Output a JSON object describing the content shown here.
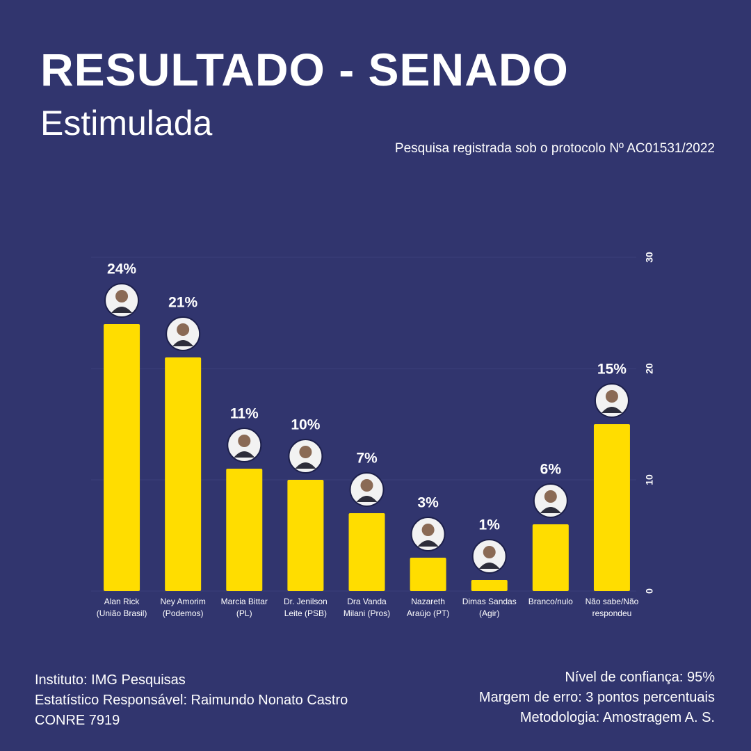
{
  "chart_data": {
    "type": "bar",
    "title": "RESULTADO - SENADO",
    "subtitle": "Estimulada",
    "note": "Pesquisa registrada sob o protocolo  Nº AC01531/2022",
    "categories": [
      "Alan Rick (União Brasil)",
      "Ney Amorim (Podemos)",
      "Marcia Bittar (PL)",
      "Dr. Jenilson Leite (PSB)",
      "Dra Vanda Milani (Pros)",
      "Nazareth Araújo (PT)",
      "Dimas Sandas (Agir)",
      "Branco/nulo",
      "Não sabe/Não respondeu"
    ],
    "values": [
      24,
      21,
      11,
      10,
      7,
      3,
      1,
      6,
      15
    ],
    "value_labels": [
      "24%",
      "21%",
      "11%",
      "10%",
      "7%",
      "3%",
      "1%",
      "6%",
      "15%"
    ],
    "color": "#ffdd00",
    "ylim": [
      0,
      30
    ],
    "yticks": [
      0,
      10,
      20,
      30
    ],
    "grid": true
  },
  "footer": {
    "left": [
      "Instituto: IMG Pesquisas",
      "Estatístico Responsável: Raimundo Nonato Castro",
      "CONRE 7919"
    ],
    "right": [
      "Nível de confiança: 95%",
      "Margem de erro: 3 pontos percentuais",
      "Metodologia: Amostragem A. S."
    ]
  }
}
